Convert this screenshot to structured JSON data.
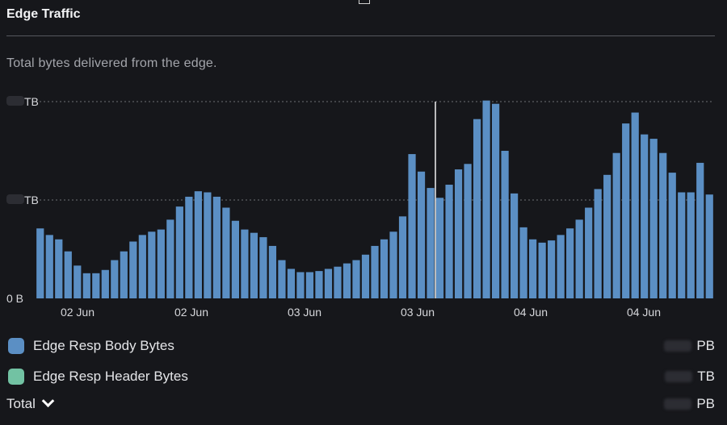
{
  "header": {
    "title": "Edge Traffic"
  },
  "subtitle": "Total bytes delivered from the edge.",
  "colors": {
    "body_series": "#5b8fc4",
    "header_series": "#72c2a3",
    "grid": "#6e7076",
    "cursor": "#f0f0f0",
    "background": "#16171b"
  },
  "chart_data": {
    "type": "bar",
    "y_tick_units": [
      "TB",
      "TB",
      "B"
    ],
    "y_tick_values": [
      "",
      "",
      "0"
    ],
    "ylim": [
      0,
      180
    ],
    "grid": "horizontal-dotted",
    "x_tick_labels": [
      "02 Jun",
      "02 Jun",
      "03 Jun",
      "03 Jun",
      "04 Jun",
      "04 Jun"
    ],
    "series": [
      {
        "name": "Edge Resp Body Bytes",
        "values": [
          64,
          58,
          54,
          43,
          30,
          23,
          23,
          26,
          35,
          43,
          52,
          58,
          61,
          63,
          72,
          84,
          93,
          98,
          97,
          93,
          83,
          71,
          63,
          60,
          56,
          48,
          35,
          27,
          24,
          24,
          25,
          27,
          29,
          32,
          35,
          40,
          48,
          54,
          61,
          75,
          132,
          116,
          101,
          92,
          104,
          118,
          123,
          164,
          181,
          178,
          135,
          96,
          65,
          54,
          51,
          53,
          58,
          64,
          72,
          83,
          100,
          113,
          133,
          160,
          170,
          150,
          146,
          133,
          115,
          97,
          97,
          124,
          95
        ]
      }
    ],
    "cursor_index": 43
  },
  "legend": [
    {
      "label": "Edge Resp Body Bytes",
      "unit": "PB",
      "color_key": "body_series"
    },
    {
      "label": "Edge Resp Header Bytes",
      "unit": "TB",
      "color_key": "header_series"
    }
  ],
  "total": {
    "label": "Total",
    "unit": "PB"
  }
}
